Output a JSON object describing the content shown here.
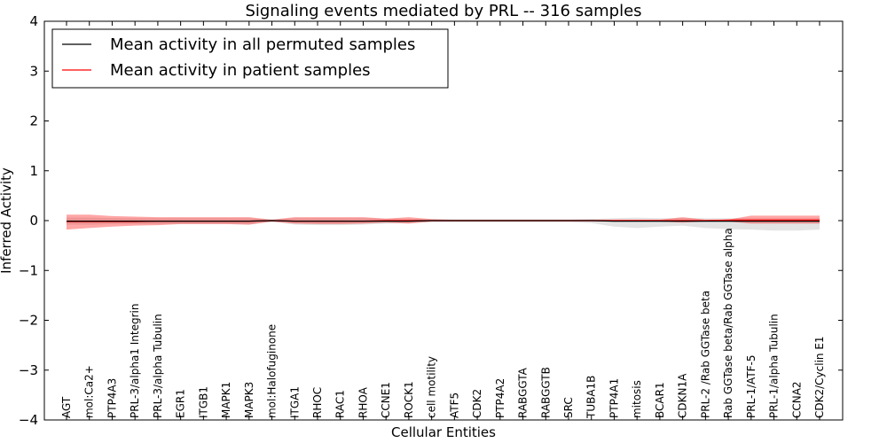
{
  "chart_data": {
    "type": "line",
    "title": "Signaling events mediated by PRL -- 316 samples",
    "xlabel": "Cellular Entities",
    "ylabel": "Inferred Activity",
    "ylim": [
      -4,
      4
    ],
    "yticks": [
      -4,
      -3,
      -2,
      -1,
      0,
      1,
      2,
      3,
      4
    ],
    "categories": [
      "AGT",
      "mol:Ca2+",
      "PTP4A3",
      "PRL-3/alpha1 Integrin",
      "PRL-3/alpha Tubulin",
      "EGR1",
      "ITGB1",
      "MAPK1",
      "MAPK3",
      "mol:Halofuginone",
      "ITGA1",
      "RHOC",
      "RAC1",
      "RHOA",
      "CCNE1",
      "ROCK1",
      "cell motility",
      "ATF5",
      "CDK2",
      "PTP4A2",
      "RABGGTA",
      "RABGGTB",
      "SRC",
      "TUBA1B",
      "PTP4A1",
      "mitosis",
      "BCAR1",
      "CDKN1A",
      "PRL-2 /Rab GGTase beta",
      "Rab GGTase beta/Rab GGTase alpha",
      "PRL-1/ATF-5",
      "PRL-1/alpha Tubulin",
      "CCNA2",
      "CDK2/Cyclin E1"
    ],
    "legend_position": "top-left",
    "series": [
      {
        "name": "Mean activity in all permuted samples",
        "color": "#000000",
        "values": [
          -0.01,
          -0.01,
          -0.01,
          -0.01,
          -0.01,
          -0.01,
          -0.01,
          -0.01,
          -0.01,
          0.0,
          -0.01,
          -0.01,
          -0.01,
          -0.01,
          -0.01,
          -0.01,
          0.0,
          0.0,
          0.0,
          0.0,
          0.0,
          0.0,
          0.0,
          0.0,
          -0.01,
          -0.01,
          -0.01,
          -0.01,
          -0.01,
          -0.01,
          -0.01,
          -0.01,
          -0.01,
          -0.01
        ],
        "band_upper": [
          0.06,
          0.06,
          0.05,
          0.05,
          0.05,
          0.05,
          0.05,
          0.05,
          0.05,
          0.02,
          0.05,
          0.05,
          0.05,
          0.05,
          0.04,
          0.04,
          0.02,
          0.02,
          0.02,
          0.02,
          0.02,
          0.02,
          0.02,
          0.03,
          0.05,
          0.06,
          0.05,
          0.05,
          0.05,
          0.05,
          0.05,
          0.05,
          0.05,
          0.05
        ],
        "band_lower": [
          -0.08,
          -0.08,
          -0.07,
          -0.07,
          -0.07,
          -0.07,
          -0.07,
          -0.07,
          -0.08,
          -0.02,
          -0.08,
          -0.09,
          -0.09,
          -0.08,
          -0.06,
          -0.05,
          -0.03,
          -0.03,
          -0.03,
          -0.03,
          -0.03,
          -0.03,
          -0.03,
          -0.05,
          -0.12,
          -0.15,
          -0.12,
          -0.1,
          -0.15,
          -0.17,
          -0.18,
          -0.2,
          -0.2,
          -0.18
        ]
      },
      {
        "name": "Mean activity in patient samples",
        "color": "#ff0000",
        "values": [
          -0.02,
          -0.02,
          -0.02,
          -0.02,
          -0.01,
          -0.01,
          -0.01,
          -0.01,
          -0.01,
          0.0,
          -0.01,
          -0.01,
          -0.01,
          -0.01,
          0.0,
          0.0,
          0.0,
          0.0,
          0.0,
          0.0,
          0.0,
          0.0,
          0.0,
          0.0,
          0.0,
          0.0,
          0.0,
          0.0,
          0.0,
          0.01,
          0.01,
          0.01,
          0.01,
          0.01
        ],
        "band_upper": [
          0.12,
          0.12,
          0.09,
          0.08,
          0.07,
          0.07,
          0.07,
          0.07,
          0.07,
          0.02,
          0.07,
          0.07,
          0.07,
          0.07,
          0.04,
          0.07,
          0.03,
          0.02,
          0.02,
          0.02,
          0.02,
          0.02,
          0.02,
          0.02,
          0.02,
          0.02,
          0.02,
          0.07,
          0.02,
          0.02,
          0.1,
          0.1,
          0.1,
          0.1
        ],
        "band_lower": [
          -0.18,
          -0.15,
          -0.12,
          -0.1,
          -0.09,
          -0.07,
          -0.07,
          -0.07,
          -0.08,
          -0.02,
          -0.06,
          -0.07,
          -0.07,
          -0.06,
          -0.04,
          -0.06,
          -0.02,
          -0.02,
          -0.02,
          -0.02,
          -0.02,
          -0.02,
          -0.02,
          -0.02,
          -0.02,
          -0.02,
          -0.02,
          -0.04,
          -0.02,
          -0.02,
          -0.06,
          -0.06,
          -0.06,
          -0.06
        ]
      }
    ]
  }
}
